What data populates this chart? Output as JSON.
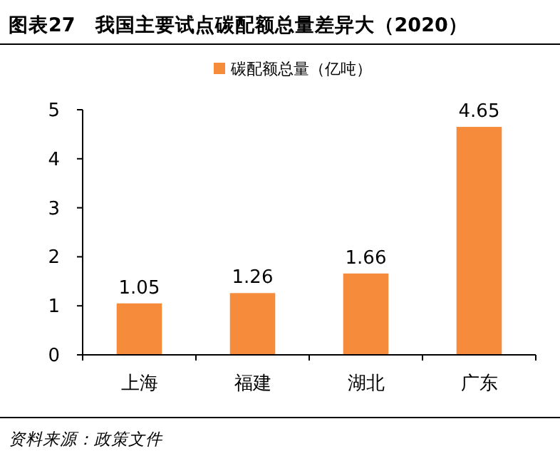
{
  "chart_data": {
    "type": "bar",
    "title": "图表27　我国主要试点碳配额总量差异大（2020）",
    "categories": [
      "上海",
      "福建",
      "湖北",
      "广东"
    ],
    "series": [
      {
        "name": "碳配额总量（亿吨）",
        "color": "#f68b3c",
        "values": [
          1.05,
          1.26,
          1.66,
          4.65
        ]
      }
    ],
    "ylim": [
      0,
      5
    ],
    "yticks": [
      0,
      1,
      2,
      3,
      4,
      5
    ],
    "data_labels": true,
    "legend": "top",
    "grid": false,
    "annotations": [
      "资料来源：政策文件"
    ]
  }
}
